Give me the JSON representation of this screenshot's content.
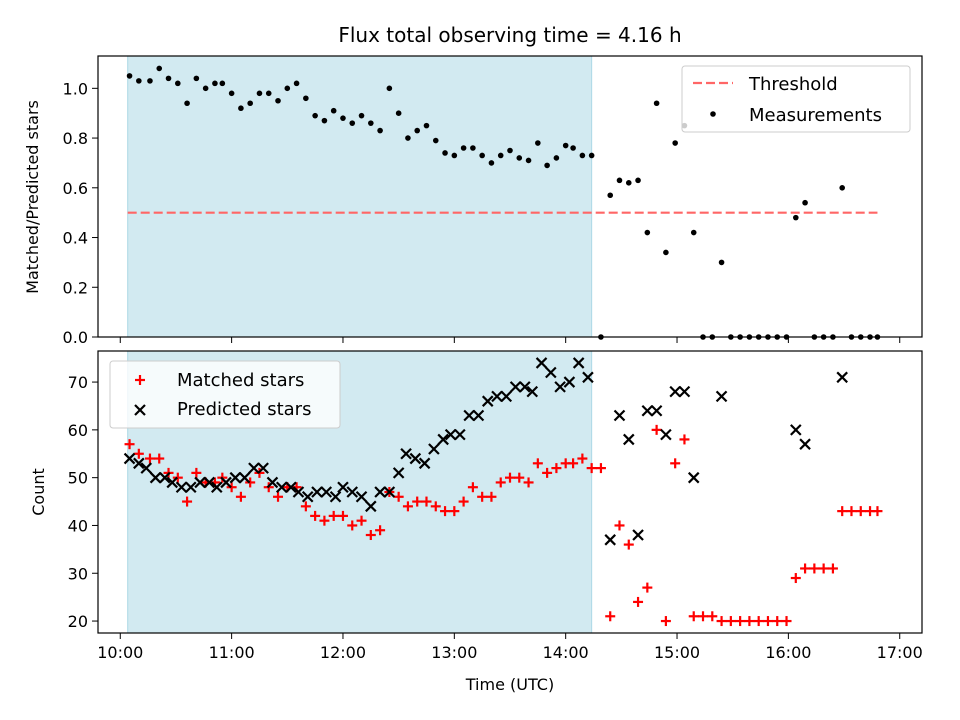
{
  "title": "Flux total observing time = 4.16 h",
  "colors": {
    "span": "#add8e6",
    "threshold": "#ff6666",
    "measurement": "#000000",
    "matched": "#ff0000",
    "predicted": "#000000"
  },
  "chart_data": [
    {
      "type": "scatter",
      "panel": "top",
      "ylabel": "Matched/Predicted stars",
      "xlim": [
        "09:48",
        "17:12"
      ],
      "ylim": [
        0,
        1.13
      ],
      "yticks": [
        "0.0",
        "0.2",
        "0.4",
        "0.6",
        "0.8",
        "1.0"
      ],
      "highlight_span": [
        "10:04",
        "14:14"
      ],
      "legend": {
        "position": "top-right",
        "entries": [
          "Threshold",
          "Measurements"
        ]
      },
      "threshold": {
        "name": "Threshold",
        "y": 0.5,
        "x_range": [
          "10:04",
          "16:48"
        ]
      },
      "series": [
        {
          "name": "Measurements",
          "marker": "dot",
          "points": [
            [
              "10:05",
              1.05
            ],
            [
              "10:10",
              1.03
            ],
            [
              "10:16",
              1.03
            ],
            [
              "10:21",
              1.08
            ],
            [
              "10:26",
              1.04
            ],
            [
              "10:31",
              1.02
            ],
            [
              "10:36",
              0.94
            ],
            [
              "10:41",
              1.04
            ],
            [
              "10:46",
              1.0
            ],
            [
              "10:51",
              1.02
            ],
            [
              "10:55",
              1.02
            ],
            [
              "11:00",
              0.98
            ],
            [
              "11:05",
              0.92
            ],
            [
              "11:10",
              0.94
            ],
            [
              "11:15",
              0.98
            ],
            [
              "11:20",
              0.98
            ],
            [
              "11:25",
              0.95
            ],
            [
              "11:30",
              1.0
            ],
            [
              "11:35",
              1.02
            ],
            [
              "11:40",
              0.96
            ],
            [
              "11:45",
              0.89
            ],
            [
              "11:50",
              0.87
            ],
            [
              "11:55",
              0.91
            ],
            [
              "12:00",
              0.88
            ],
            [
              "12:05",
              0.86
            ],
            [
              "12:10",
              0.89
            ],
            [
              "12:15",
              0.86
            ],
            [
              "12:20",
              0.83
            ],
            [
              "12:25",
              1.0
            ],
            [
              "12:30",
              0.9
            ],
            [
              "12:35",
              0.8
            ],
            [
              "12:40",
              0.83
            ],
            [
              "12:45",
              0.85
            ],
            [
              "12:50",
              0.79
            ],
            [
              "12:55",
              0.74
            ],
            [
              "13:00",
              0.73
            ],
            [
              "13:05",
              0.76
            ],
            [
              "13:10",
              0.76
            ],
            [
              "13:15",
              0.73
            ],
            [
              "13:20",
              0.7
            ],
            [
              "13:25",
              0.73
            ],
            [
              "13:30",
              0.75
            ],
            [
              "13:35",
              0.72
            ],
            [
              "13:40",
              0.71
            ],
            [
              "13:45",
              0.78
            ],
            [
              "13:50",
              0.69
            ],
            [
              "13:55",
              0.72
            ],
            [
              "14:00",
              0.77
            ],
            [
              "14:04",
              0.76
            ],
            [
              "14:09",
              0.73
            ],
            [
              "14:14",
              0.73
            ],
            [
              "14:19",
              0.0
            ],
            [
              "14:24",
              0.57
            ],
            [
              "14:29",
              0.63
            ],
            [
              "14:34",
              0.62
            ],
            [
              "14:39",
              0.63
            ],
            [
              "14:44",
              0.42
            ],
            [
              "14:49",
              0.94
            ],
            [
              "14:54",
              0.34
            ],
            [
              "14:59",
              0.78
            ],
            [
              "15:04",
              0.85
            ],
            [
              "15:09",
              0.42
            ],
            [
              "15:14",
              0.0
            ],
            [
              "15:19",
              0.0
            ],
            [
              "15:24",
              0.3
            ],
            [
              "15:29",
              0.0
            ],
            [
              "15:34",
              0.0
            ],
            [
              "15:39",
              0.0
            ],
            [
              "15:44",
              0.0
            ],
            [
              "15:49",
              0.0
            ],
            [
              "15:54",
              0.0
            ],
            [
              "15:59",
              0.0
            ],
            [
              "16:04",
              0.48
            ],
            [
              "16:09",
              0.54
            ],
            [
              "16:14",
              0.0
            ],
            [
              "16:19",
              0.0
            ],
            [
              "16:24",
              0.0
            ],
            [
              "16:29",
              0.6
            ],
            [
              "16:34",
              0.0
            ],
            [
              "16:39",
              0.0
            ],
            [
              "16:44",
              0.0
            ],
            [
              "16:48",
              0.0
            ]
          ]
        }
      ]
    },
    {
      "type": "scatter",
      "panel": "bottom",
      "xlabel": "Time (UTC)",
      "ylabel": "Count",
      "xlim": [
        "09:48",
        "17:12"
      ],
      "xticks": [
        "10:00",
        "11:00",
        "12:00",
        "13:00",
        "14:00",
        "15:00",
        "16:00",
        "17:00"
      ],
      "ylim": [
        17.5,
        76.5
      ],
      "yticks": [
        "20",
        "30",
        "40",
        "50",
        "60",
        "70"
      ],
      "highlight_span": [
        "10:04",
        "14:14"
      ],
      "legend": {
        "position": "top-left",
        "entries": [
          "Matched stars",
          "Predicted stars"
        ]
      },
      "series": [
        {
          "name": "Matched stars",
          "marker": "plus",
          "points": [
            [
              "10:05",
              57
            ],
            [
              "10:10",
              55
            ],
            [
              "10:16",
              54
            ],
            [
              "10:21",
              54
            ],
            [
              "10:26",
              51
            ],
            [
              "10:31",
              50
            ],
            [
              "10:36",
              45
            ],
            [
              "10:41",
              51
            ],
            [
              "10:46",
              49
            ],
            [
              "10:51",
              49
            ],
            [
              "10:55",
              50
            ],
            [
              "11:00",
              48
            ],
            [
              "11:05",
              46
            ],
            [
              "11:10",
              49
            ],
            [
              "11:15",
              51
            ],
            [
              "11:20",
              48
            ],
            [
              "11:25",
              46
            ],
            [
              "11:30",
              48
            ],
            [
              "11:35",
              48
            ],
            [
              "11:40",
              44
            ],
            [
              "11:45",
              42
            ],
            [
              "11:50",
              41
            ],
            [
              "11:55",
              42
            ],
            [
              "12:00",
              42
            ],
            [
              "12:05",
              40
            ],
            [
              "12:10",
              41
            ],
            [
              "12:15",
              38
            ],
            [
              "12:20",
              39
            ],
            [
              "12:25",
              47
            ],
            [
              "12:30",
              46
            ],
            [
              "12:35",
              44
            ],
            [
              "12:40",
              45
            ],
            [
              "12:45",
              45
            ],
            [
              "12:50",
              44
            ],
            [
              "12:55",
              43
            ],
            [
              "13:00",
              43
            ],
            [
              "13:05",
              45
            ],
            [
              "13:10",
              48
            ],
            [
              "13:15",
              46
            ],
            [
              "13:20",
              46
            ],
            [
              "13:25",
              49
            ],
            [
              "13:30",
              50
            ],
            [
              "13:35",
              50
            ],
            [
              "13:40",
              49
            ],
            [
              "13:45",
              53
            ],
            [
              "13:50",
              51
            ],
            [
              "13:55",
              52
            ],
            [
              "14:00",
              53
            ],
            [
              "14:04",
              53
            ],
            [
              "14:09",
              54
            ],
            [
              "14:14",
              52
            ],
            [
              "14:19",
              52
            ],
            [
              "14:24",
              21
            ],
            [
              "14:29",
              40
            ],
            [
              "14:34",
              36
            ],
            [
              "14:39",
              24
            ],
            [
              "14:44",
              27
            ],
            [
              "14:49",
              60
            ],
            [
              "14:54",
              20
            ],
            [
              "14:59",
              53
            ],
            [
              "15:04",
              58
            ],
            [
              "15:09",
              21
            ],
            [
              "15:14",
              21
            ],
            [
              "15:19",
              21
            ],
            [
              "15:24",
              20
            ],
            [
              "15:29",
              20
            ],
            [
              "15:34",
              20
            ],
            [
              "15:39",
              20
            ],
            [
              "15:44",
              20
            ],
            [
              "15:49",
              20
            ],
            [
              "15:54",
              20
            ],
            [
              "15:59",
              20
            ],
            [
              "16:04",
              29
            ],
            [
              "16:09",
              31
            ],
            [
              "16:14",
              31
            ],
            [
              "16:19",
              31
            ],
            [
              "16:24",
              31
            ],
            [
              "16:29",
              43
            ],
            [
              "16:34",
              43
            ],
            [
              "16:39",
              43
            ],
            [
              "16:44",
              43
            ],
            [
              "16:48",
              43
            ]
          ]
        },
        {
          "name": "Predicted stars",
          "marker": "x",
          "points": [
            [
              "10:05",
              54
            ],
            [
              "10:10",
              53
            ],
            [
              "10:14",
              52
            ],
            [
              "10:19",
              50
            ],
            [
              "10:24",
              50
            ],
            [
              "10:28",
              49
            ],
            [
              "10:33",
              48
            ],
            [
              "10:38",
              48
            ],
            [
              "10:43",
              49
            ],
            [
              "10:48",
              49
            ],
            [
              "10:52",
              48
            ],
            [
              "10:57",
              49
            ],
            [
              "11:02",
              50
            ],
            [
              "11:07",
              50
            ],
            [
              "11:12",
              52
            ],
            [
              "11:17",
              52
            ],
            [
              "11:22",
              49
            ],
            [
              "11:27",
              48
            ],
            [
              "11:32",
              48
            ],
            [
              "11:36",
              47
            ],
            [
              "11:41",
              46
            ],
            [
              "11:46",
              47
            ],
            [
              "11:51",
              47
            ],
            [
              "11:56",
              46
            ],
            [
              "12:00",
              48
            ],
            [
              "12:05",
              47
            ],
            [
              "12:10",
              46
            ],
            [
              "12:15",
              44
            ],
            [
              "12:20",
              47
            ],
            [
              "12:25",
              47
            ],
            [
              "12:30",
              51
            ],
            [
              "12:34",
              55
            ],
            [
              "12:39",
              54
            ],
            [
              "12:44",
              53
            ],
            [
              "12:49",
              56
            ],
            [
              "12:54",
              58
            ],
            [
              "12:58",
              59
            ],
            [
              "13:03",
              59
            ],
            [
              "13:08",
              63
            ],
            [
              "13:13",
              63
            ],
            [
              "13:18",
              66
            ],
            [
              "13:23",
              67
            ],
            [
              "13:28",
              67
            ],
            [
              "13:33",
              69
            ],
            [
              "13:38",
              69
            ],
            [
              "13:42",
              68
            ],
            [
              "13:47",
              74
            ],
            [
              "13:52",
              72
            ],
            [
              "13:57",
              69
            ],
            [
              "14:02",
              70
            ],
            [
              "14:07",
              74
            ],
            [
              "14:12",
              71
            ],
            [
              "14:24",
              37
            ],
            [
              "14:29",
              63
            ],
            [
              "14:34",
              58
            ],
            [
              "14:39",
              38
            ],
            [
              "14:44",
              64
            ],
            [
              "14:49",
              64
            ],
            [
              "14:54",
              59
            ],
            [
              "14:59",
              68
            ],
            [
              "15:04",
              68
            ],
            [
              "15:09",
              50
            ],
            [
              "15:24",
              67
            ],
            [
              "16:04",
              60
            ],
            [
              "16:09",
              57
            ],
            [
              "16:29",
              71
            ]
          ]
        }
      ]
    }
  ]
}
